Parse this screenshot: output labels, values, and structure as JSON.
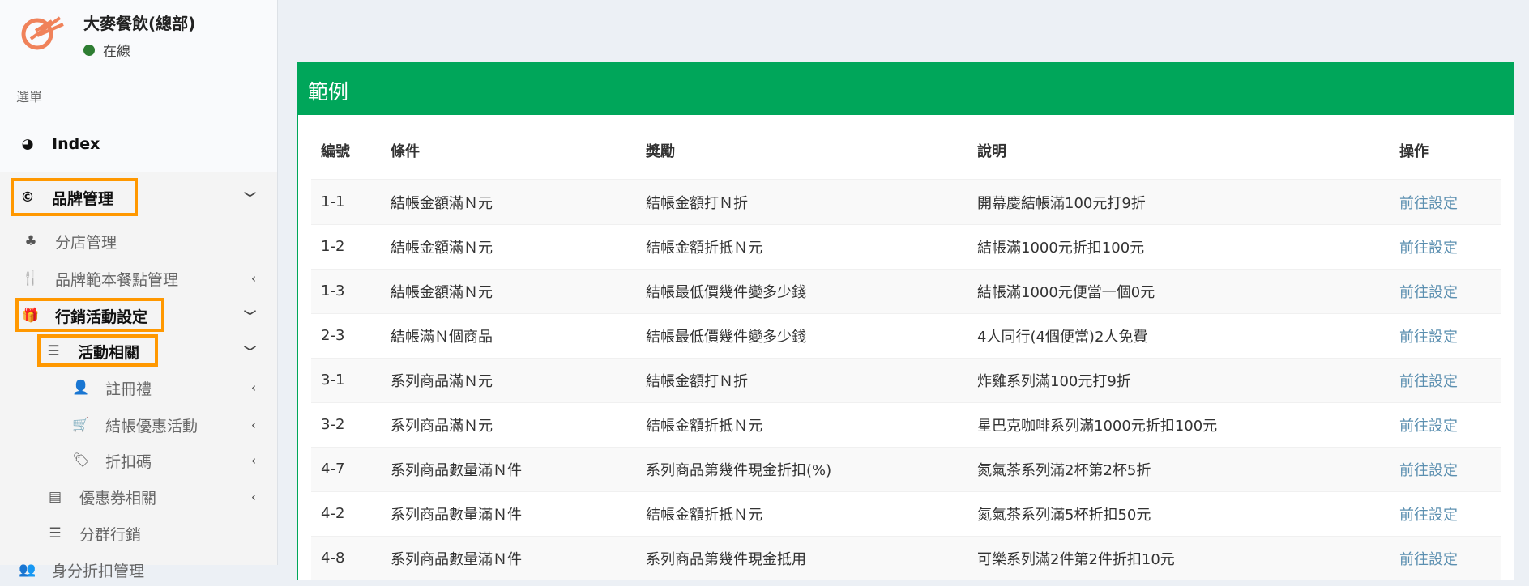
{
  "sidebar": {
    "brand": "大麥餐飲(總部)",
    "status": "在線",
    "menu_label": "選單",
    "items": [
      {
        "label": "Index",
        "icon": "dashboard-icon"
      },
      {
        "label": "品牌管理",
        "icon": "copyright-icon"
      },
      {
        "label": "分店管理",
        "icon": "sitemap-icon"
      },
      {
        "label": "品牌範本餐點管理",
        "icon": "cutlery-icon"
      },
      {
        "label": "行銷活動設定",
        "icon": "gift-icon"
      },
      {
        "label": "活動相關",
        "icon": "bars-icon"
      },
      {
        "label": "註冊禮",
        "icon": "user-plus-icon"
      },
      {
        "label": "結帳優惠活動",
        "icon": "shopping-cart-icon"
      },
      {
        "label": "折扣碼",
        "icon": "tags-icon"
      },
      {
        "label": "優惠券相關",
        "icon": "newspaper-icon"
      },
      {
        "label": "分群行銷",
        "icon": "bars-icon"
      },
      {
        "label": "身分折扣管理",
        "icon": "users-icon"
      }
    ]
  },
  "panel": {
    "title": "範例",
    "headers": [
      "編號",
      "條件",
      "獎勵",
      "說明",
      "操作"
    ],
    "rows": [
      [
        "1-1",
        "結帳金額滿Ｎ元",
        "結帳金額打Ｎ折",
        "開幕慶結帳滿100元打9折",
        "前往設定"
      ],
      [
        "1-2",
        "結帳金額滿Ｎ元",
        "結帳金額折抵Ｎ元",
        "結帳滿1000元折扣100元",
        "前往設定"
      ],
      [
        "1-3",
        "結帳金額滿Ｎ元",
        "結帳最低價幾件變多少錢",
        "結帳滿1000元便當一個0元",
        "前往設定"
      ],
      [
        "2-3",
        "結帳滿Ｎ個商品",
        "結帳最低價幾件變多少錢",
        "4人同行(4個便當)2人免費",
        "前往設定"
      ],
      [
        "3-1",
        "系列商品滿Ｎ元",
        "結帳金額打Ｎ折",
        "炸雞系列滿100元打9折",
        "前往設定"
      ],
      [
        "3-2",
        "系列商品滿Ｎ元",
        "結帳金額折抵Ｎ元",
        "星巴克咖啡系列滿1000元折扣100元",
        "前往設定"
      ],
      [
        "4-7",
        "系列商品數量滿Ｎ件",
        "系列商品第幾件現金折扣(%)",
        "氮氣茶系列滿2杯第2杯5折",
        "前往設定"
      ],
      [
        "4-2",
        "系列商品數量滿Ｎ件",
        "結帳金額折抵Ｎ元",
        "氮氣茶系列滿5杯折扣50元",
        "前往設定"
      ],
      [
        "4-8",
        "系列商品數量滿Ｎ件",
        "系列商品第幾件現金抵用",
        "可樂系列滿2件第2件折扣10元",
        "前往設定"
      ]
    ]
  }
}
